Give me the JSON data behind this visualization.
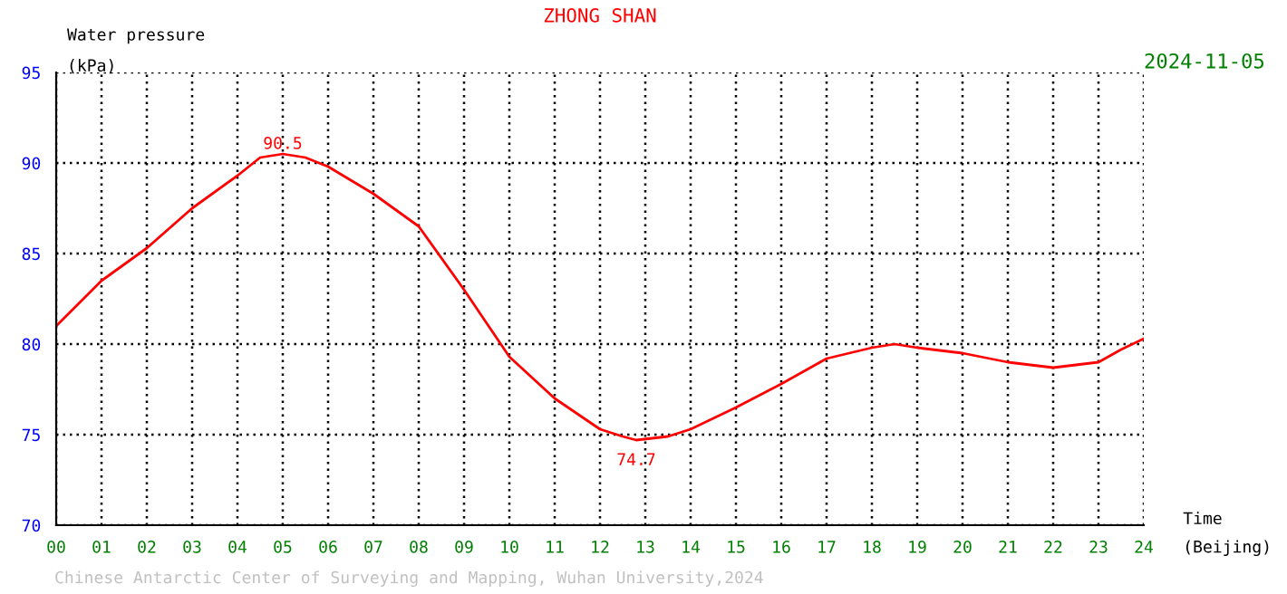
{
  "chart_data": {
    "type": "line",
    "title": "ZHONG SHAN",
    "subtitle": "2024-11-05",
    "xlabel": "Time\n(Beijing)",
    "ylabel": "Water pressure\n(kPa)",
    "x": [
      0,
      1,
      2,
      3,
      4,
      4.5,
      5,
      5.5,
      6,
      7,
      8,
      9,
      10,
      11,
      12,
      12.5,
      12.8,
      13.5,
      14,
      15,
      16,
      17,
      18,
      18.5,
      19,
      20,
      21,
      22,
      23,
      23.5,
      24
    ],
    "series": [
      {
        "color": "#ff0000",
        "values": [
          81.0,
          83.5,
          85.3,
          87.5,
          89.3,
          90.3,
          90.5,
          90.3,
          89.8,
          88.3,
          86.5,
          83.0,
          79.3,
          77.0,
          75.3,
          74.9,
          74.7,
          74.9,
          75.3,
          76.5,
          77.8,
          79.2,
          79.8,
          80.0,
          79.8,
          79.5,
          79.0,
          78.7,
          79.0,
          79.7,
          80.3
        ]
      }
    ],
    "annotations": [
      {
        "text": "90.5",
        "x": 5,
        "y": 90.5
      },
      {
        "text": "74.7",
        "x": 12.8,
        "y": 74.7
      },
      "Chinese Antarctic Center of Surveying and Mapping, Wuhan University,2024"
    ],
    "xlim": [
      0,
      24
    ],
    "xticks": [
      {
        "value": 0,
        "label": "00"
      },
      {
        "value": 1,
        "label": "01"
      },
      {
        "value": 2,
        "label": "02"
      },
      {
        "value": 3,
        "label": "03"
      },
      {
        "value": 4,
        "label": "04"
      },
      {
        "value": 5,
        "label": "05"
      },
      {
        "value": 6,
        "label": "06"
      },
      {
        "value": 7,
        "label": "07"
      },
      {
        "value": 8,
        "label": "08"
      },
      {
        "value": 9,
        "label": "09"
      },
      10,
      11,
      12,
      13,
      14,
      15,
      16,
      17,
      18,
      19,
      20,
      21,
      22,
      23,
      24
    ],
    "ylim": [
      70,
      95
    ],
    "yticks": [
      70,
      75,
      80,
      85,
      90,
      95
    ],
    "grid": true,
    "line_style": "solid",
    "marker": "none"
  }
}
